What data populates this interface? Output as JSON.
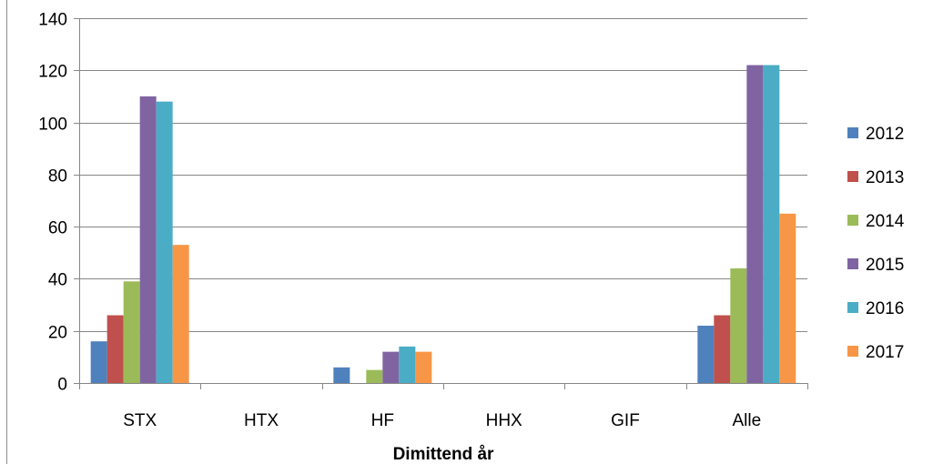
{
  "chart_data": {
    "type": "bar",
    "title": "",
    "xlabel": "Dimittend år",
    "ylabel": "",
    "ylim": [
      0,
      140
    ],
    "y_ticks": [
      "0",
      "20",
      "40",
      "60",
      "80",
      "100",
      "120",
      "140"
    ],
    "categories": [
      "STX",
      "HTX",
      "HF",
      "HHX",
      "GIF",
      "Alle"
    ],
    "grid": true,
    "legend_position": "right",
    "series": [
      {
        "name": "2012",
        "color": "#4F81BD",
        "values": [
          16,
          0,
          6,
          0,
          0,
          22
        ]
      },
      {
        "name": "2013",
        "color": "#C0504D",
        "values": [
          26,
          0,
          0,
          0,
          0,
          26
        ]
      },
      {
        "name": "2014",
        "color": "#9BBB59",
        "values": [
          39,
          0,
          5,
          0,
          0,
          44
        ]
      },
      {
        "name": "2015",
        "color": "#8064A2",
        "values": [
          110,
          0,
          12,
          0,
          0,
          122
        ]
      },
      {
        "name": "2016",
        "color": "#4BACC6",
        "values": [
          108,
          0,
          14,
          0,
          0,
          122
        ]
      },
      {
        "name": "2017",
        "color": "#F79646",
        "values": [
          53,
          0,
          12,
          0,
          0,
          65
        ]
      }
    ]
  }
}
